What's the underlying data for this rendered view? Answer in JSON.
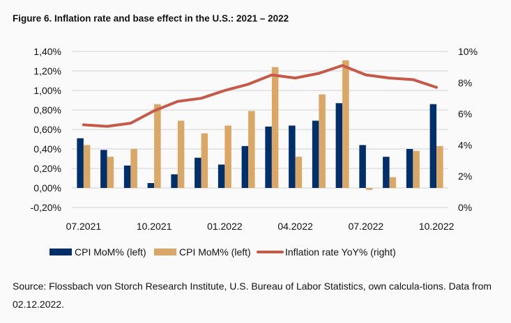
{
  "chart_data": {
    "type": "bar",
    "title": "Figure 6. Inflation rate and base effect in the U.S.: 2021 – 2022",
    "categories": [
      "07.2021",
      "08.2021",
      "09.2021",
      "10.2021",
      "11.2021",
      "12.2021",
      "01.2022",
      "02.2022",
      "03.2022",
      "04.2022",
      "05.2022",
      "06.2022",
      "07.2022",
      "08.2022",
      "09.2022",
      "10.2022"
    ],
    "x_tick_labels": [
      "07.2021",
      "10.2021",
      "01.2022",
      "04.2022",
      "07.2022",
      "10.2022"
    ],
    "series": [
      {
        "name": "CPI MoM% (left)",
        "type": "bar",
        "axis": "left",
        "color": "#002f6c",
        "values": [
          0.51,
          0.39,
          0.23,
          0.05,
          0.14,
          0.31,
          0.24,
          0.43,
          0.63,
          0.64,
          0.69,
          0.87,
          0.44,
          0.32,
          0.4,
          0.86
        ]
      },
      {
        "name": "CPI MoM% (left)",
        "type": "bar",
        "axis": "left",
        "color": "#dba766",
        "values": [
          0.44,
          0.32,
          0.4,
          0.86,
          0.69,
          0.56,
          0.64,
          0.79,
          1.24,
          0.32,
          0.96,
          1.31,
          -0.02,
          0.11,
          0.38,
          0.43
        ]
      },
      {
        "name": "Inflation rate YoY% (right)",
        "type": "line",
        "axis": "right",
        "color": "#c55a48",
        "values": [
          5.3,
          5.2,
          5.4,
          6.2,
          6.8,
          7.0,
          7.5,
          7.9,
          8.5,
          8.3,
          8.6,
          9.1,
          8.5,
          8.3,
          8.2,
          7.7
        ]
      }
    ],
    "y_left": {
      "ylim": [
        -0.2,
        1.4
      ],
      "ticks": [
        "-0,20%",
        "0,00%",
        "0,20%",
        "0,40%",
        "0,60%",
        "0,80%",
        "1,00%",
        "1,20%",
        "1,40%"
      ]
    },
    "y_right": {
      "ylim": [
        0,
        10
      ],
      "ticks": [
        "0%",
        "2%",
        "4%",
        "6%",
        "8%",
        "10%"
      ]
    },
    "grid": true,
    "legend_position": "bottom"
  },
  "source": "Source: Flossbach von Storch Research Institute, U.S. Bureau of Labor Statistics, own calcula-tions. Data from 02.12.2022."
}
